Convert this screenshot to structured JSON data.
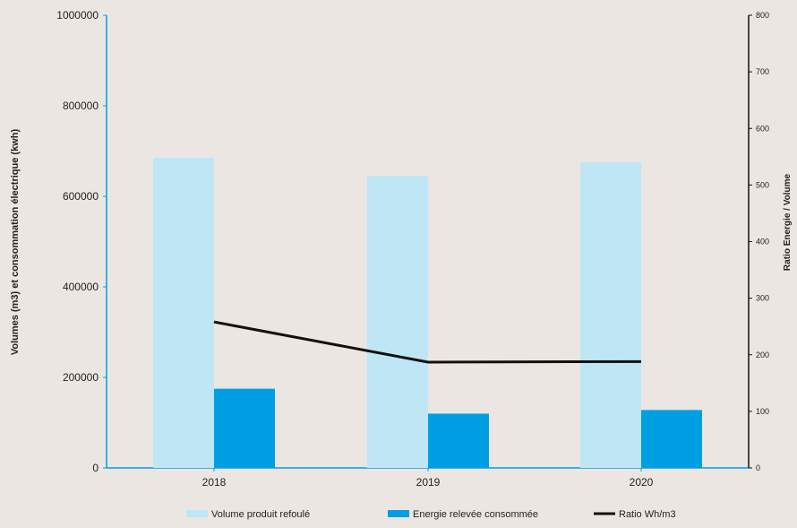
{
  "chart_data": {
    "type": "bar",
    "categories": [
      "2018",
      "2019",
      "2020"
    ],
    "series": [
      {
        "name": "Volume produit refoulé",
        "kind": "bar",
        "axis": "left",
        "color": "#bfe6f5",
        "values": [
          685000,
          645000,
          675000
        ]
      },
      {
        "name": "Energie relevée consommée",
        "kind": "bar",
        "axis": "left",
        "color": "#009fe3",
        "values": [
          175000,
          120000,
          128000
        ]
      },
      {
        "name": "Ratio Wh/m3",
        "kind": "line",
        "axis": "right",
        "color": "#111111",
        "values": [
          258,
          187,
          188
        ]
      }
    ],
    "ylabel": "Volumes (m3) et consommation électrique  (kwh)",
    "y2label": "Ratio Energie / Volume",
    "ylim": [
      0,
      1000000
    ],
    "y2lim": [
      0,
      800
    ],
    "yticks": [
      "0",
      "200000",
      "400000",
      "600000",
      "800000",
      "1000000"
    ],
    "y2ticks": [
      "0",
      "100",
      "200",
      "300",
      "400",
      "500",
      "600",
      "700",
      "800"
    ],
    "legend_position": "bottom",
    "grid": false
  }
}
